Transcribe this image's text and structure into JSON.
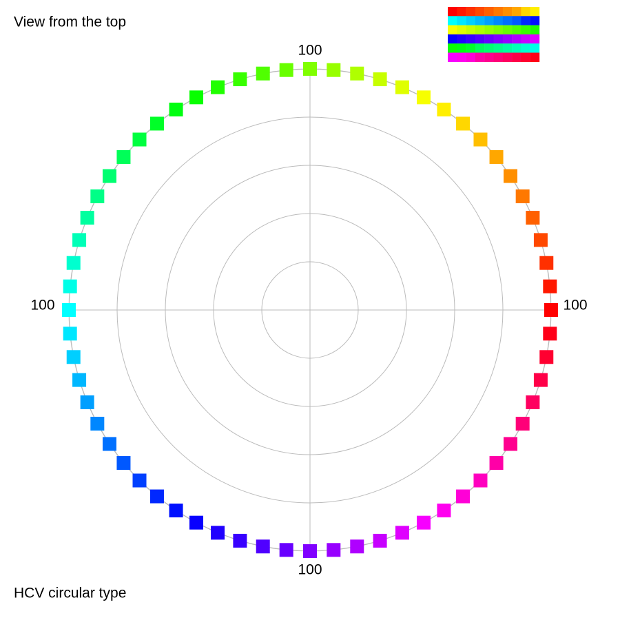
{
  "chart_data": {
    "type": "polar",
    "title": "View from the top",
    "footer": "HCV circular type",
    "theta": [
      0,
      5.625,
      11.25,
      16.875,
      22.5,
      28.125,
      33.75,
      39.375,
      45,
      50.625,
      56.25,
      61.875,
      67.5,
      73.125,
      78.75,
      84.375,
      90,
      95.625,
      101.25,
      106.875,
      112.5,
      118.125,
      123.75,
      129.375,
      135,
      140.625,
      146.25,
      151.875,
      157.5,
      163.125,
      168.75,
      174.375,
      180,
      185.625,
      191.25,
      196.875,
      202.5,
      208.125,
      213.75,
      219.375,
      225,
      230.625,
      236.25,
      241.875,
      247.5,
      253.125,
      258.75,
      264.375,
      270,
      275.625,
      281.25,
      286.875,
      292.5,
      298.125,
      303.75,
      309.375,
      315,
      320.625,
      326.25,
      331.875,
      337.5,
      343.125,
      348.75,
      354.375
    ],
    "values": [
      100,
      100,
      100,
      100,
      100,
      100,
      100,
      100,
      100,
      100,
      100,
      100,
      100,
      100,
      100,
      100,
      100,
      100,
      100,
      100,
      100,
      100,
      100,
      100,
      100,
      100,
      100,
      100,
      100,
      100,
      100,
      100,
      100,
      100,
      100,
      100,
      100,
      100,
      100,
      100,
      100,
      100,
      100,
      100,
      100,
      100,
      100,
      100,
      100,
      100,
      100,
      100,
      100,
      100,
      100,
      100,
      100,
      100,
      100,
      100,
      100,
      100,
      100,
      100
    ],
    "colors": [
      "#ff0000",
      "#ff1800",
      "#ff3000",
      "#ff4800",
      "#ff6000",
      "#ff7800",
      "#ff8f00",
      "#ffa700",
      "#ffbf00",
      "#ffd700",
      "#ffef00",
      "#f7ff00",
      "#dfff00",
      "#c7ff00",
      "#afff00",
      "#97ff00",
      "#80ff00",
      "#68ff00",
      "#50ff00",
      "#38ff00",
      "#20ff00",
      "#08ff00",
      "#00ff10",
      "#00ff28",
      "#00ff40",
      "#00ff58",
      "#00ff70",
      "#00ff87",
      "#00ff9f",
      "#00ffb7",
      "#00ffcf",
      "#00ffe7",
      "#00ffff",
      "#00e7ff",
      "#00cfff",
      "#00b7ff",
      "#009fff",
      "#0087ff",
      "#0070ff",
      "#0058ff",
      "#0040ff",
      "#0028ff",
      "#0010ff",
      "#0800ff",
      "#2000ff",
      "#3800ff",
      "#5000ff",
      "#6800ff",
      "#8000ff",
      "#9700ff",
      "#af00ff",
      "#c700ff",
      "#df00ff",
      "#f700ff",
      "#ff00ef",
      "#ff00d7",
      "#ff00bf",
      "#ff00a7",
      "#ff008f",
      "#ff0078",
      "#ff0060",
      "#ff0048",
      "#ff0030",
      "#ff0018"
    ],
    "rlim": [
      0,
      100
    ],
    "rticks": [
      20,
      40,
      60,
      80,
      100
    ],
    "grid": true
  }
}
